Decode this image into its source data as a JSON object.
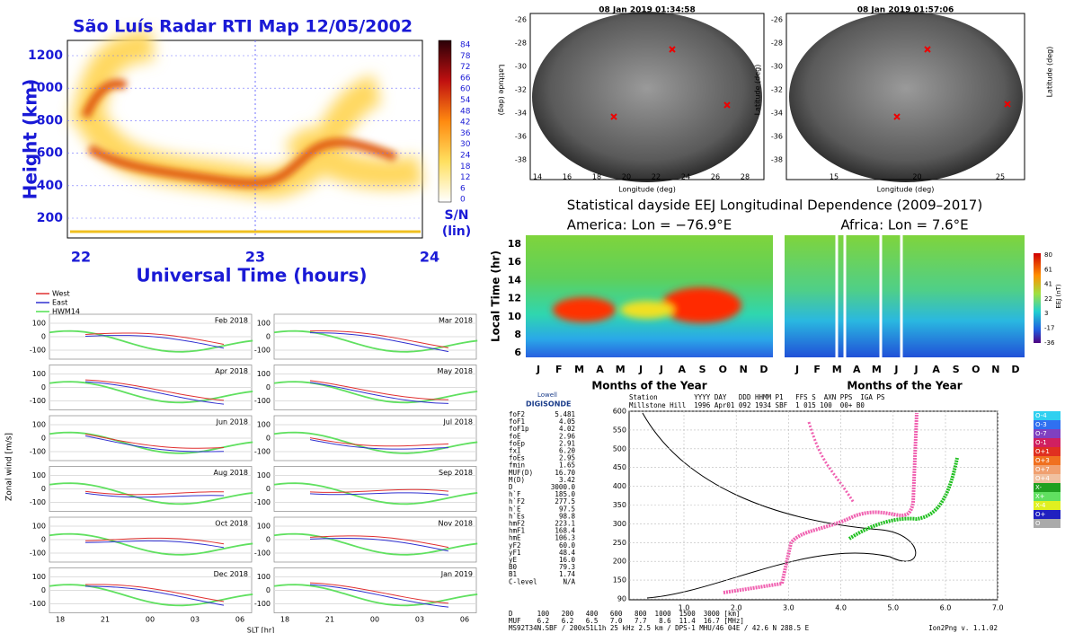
{
  "rti": {
    "title": "São Luís Radar RTI Map 12/05/2002",
    "y_label": "Height (km)",
    "x_label": "Universal Time (hours)",
    "yticks": [
      "200",
      "400",
      "600",
      "800",
      "1000",
      "1200"
    ],
    "xticks": [
      "22",
      "23",
      "24"
    ],
    "colorbar_ticks": [
      "84",
      "78",
      "72",
      "66",
      "60",
      "54",
      "48",
      "42",
      "36",
      "30",
      "24",
      "18",
      "12",
      "6",
      "0"
    ],
    "colorbar_label": [
      "S/N",
      "(lin)"
    ]
  },
  "wind": {
    "legend": [
      "West",
      "East",
      "HWM14"
    ],
    "panels": [
      "Feb 2018",
      "Mar 2018",
      "Apr 2018",
      "May 2018",
      "Jun 2018",
      "Jul 2018",
      "Aug 2018",
      "Sep 2018",
      "Oct 2018",
      "Nov 2018",
      "Dec 2018",
      "Jan 2019"
    ],
    "yticks": [
      "100",
      "0",
      "-100"
    ],
    "xticks": [
      "18",
      "21",
      "00",
      "03",
      "06"
    ],
    "x_label": "SLT [hr]",
    "y_label": "Zonal wind [m/s]"
  },
  "allsky": {
    "x_label": "Longitude (deg)",
    "y_label": "Latitude (deg)",
    "yticks": [
      "-26",
      "-28",
      "-30",
      "-32",
      "-34",
      "-36",
      "-38"
    ],
    "panels": [
      {
        "title": "08 Jan 2019 01:34:58",
        "xticks": [
          "14",
          "16",
          "18",
          "20",
          "22",
          "24",
          "26",
          "28"
        ]
      },
      {
        "title": "08 Jan 2019 01:57:06",
        "xticks": [
          "15",
          "20",
          "25"
        ]
      }
    ]
  },
  "eej": {
    "title": "Statistical dayside EEJ Longitudinal Dependence (2009–2017)",
    "panels": [
      "America: Lon = −76.9°E",
      "Africa: Lon = 7.6°E"
    ],
    "y_label": "Local Time (hr)",
    "yticks": [
      "18",
      "16",
      "14",
      "12",
      "10",
      "8",
      "6"
    ],
    "months": [
      "J",
      "F",
      "M",
      "A",
      "M",
      "J",
      "J",
      "A",
      "S",
      "O",
      "N",
      "D"
    ],
    "x_label": "Months of the Year",
    "colorbar_ticks": [
      "80",
      "61",
      "41",
      "22",
      "3",
      "-17",
      "-36"
    ],
    "colorbar_label": "EEJ (nT)"
  },
  "ionogram": {
    "logo": [
      "Lowell",
      "DIGISONDE"
    ],
    "header": [
      "Station         YYYY DAY   DDD HHMM P1   FFS S  AXN PPS  IGA PS",
      "Millstone Hill  1996 Apr01 092 1934 SBF  1 015 100  00+ B0"
    ],
    "params": [
      [
        "foF2",
        "5.481"
      ],
      [
        "foF1",
        "4.05"
      ],
      [
        "foF1p",
        "4.02"
      ],
      [
        "foE",
        "2.96"
      ],
      [
        "foEp",
        "2.91"
      ],
      [
        "fxI",
        "6.20"
      ],
      [
        "foEs",
        "2.95"
      ],
      [
        "fmin",
        "1.65"
      ],
      [
        "MUF(D)",
        "16.70"
      ],
      [
        "M(D)",
        "3.42"
      ],
      [
        "D",
        "3000.0"
      ],
      [
        "h`F",
        "185.0"
      ],
      [
        "h`F2",
        "277.5"
      ],
      [
        "h`E",
        "97.5"
      ],
      [
        "h`Es",
        "98.8"
      ],
      [
        "hmF2",
        "223.1"
      ],
      [
        "hmF1",
        "168.4"
      ],
      [
        "hmE",
        "106.3"
      ],
      [
        "yF2",
        "60.0"
      ],
      [
        "yF1",
        "48.4"
      ],
      [
        "yE",
        "16.0"
      ],
      [
        "B0",
        "79.3"
      ],
      [
        "B1",
        "1.74"
      ],
      [
        "C-level",
        "N/A"
      ]
    ],
    "yticks": [
      "600",
      "550",
      "500",
      "450",
      "400",
      "350",
      "300",
      "250",
      "200",
      "150",
      "90"
    ],
    "xticks": [
      "1.0",
      "2.0",
      "3.0",
      "4.0",
      "5.0",
      "6.0",
      "7.0"
    ],
    "legend": [
      "O-4",
      "O-3",
      "O-7",
      "O-1",
      "O+1",
      "O+3",
      "O+7",
      "O+4",
      "X-",
      "X+",
      "X-4",
      "O+",
      "O"
    ],
    "footer": [
      "D      100   200   400   600   800  1000  1500  3000 [km]",
      "MUF    6.2   6.2   6.5   7.0   7.7   8.6  11.4  16.7 [MHz]",
      "MS92T34N.SBF / 200x51L1h 25 kHz 2.5 km / DPS-1 MHU/46 04E / 42.6 N 288.5 E",
      "Ion2Png v. 1.1.02"
    ]
  }
}
